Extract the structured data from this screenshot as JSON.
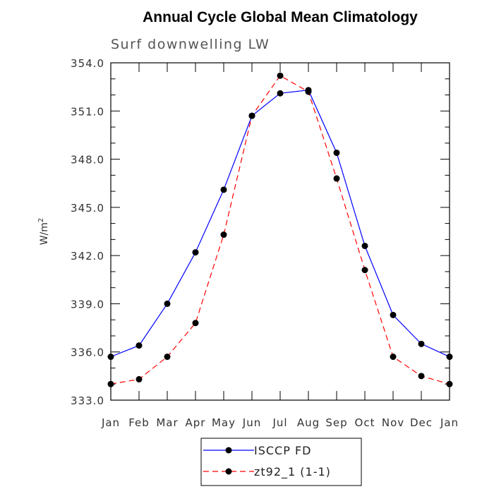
{
  "chart_data": {
    "type": "line",
    "title": "Annual Cycle Global Mean Climatology",
    "subtitle": "Surf downwelling LW",
    "ylabel": "W/m",
    "ylabel_sup": "2",
    "categories": [
      "Jan",
      "Feb",
      "Mar",
      "Apr",
      "May",
      "Jun",
      "Jul",
      "Aug",
      "Sep",
      "Oct",
      "Nov",
      "Dec",
      "Jan"
    ],
    "ylim": [
      333.0,
      354.0
    ],
    "yticks": [
      "333.0",
      "336.0",
      "339.0",
      "342.0",
      "345.0",
      "348.0",
      "351.0",
      "354.0"
    ],
    "series": [
      {
        "name": "ISCCP FD",
        "color": "#0000ff",
        "dash": "solid",
        "values": [
          335.7,
          336.4,
          339.0,
          342.2,
          346.1,
          350.7,
          352.1,
          352.3,
          348.4,
          342.6,
          338.3,
          336.5,
          335.7
        ]
      },
      {
        "name": "zt92_1 (1-1)",
        "color": "#ff0000",
        "dash": "dashed",
        "values": [
          334.0,
          334.3,
          335.7,
          337.8,
          343.3,
          350.7,
          353.2,
          352.2,
          346.8,
          341.1,
          335.7,
          334.5,
          334.0
        ]
      }
    ],
    "legend_position": "bottom-center",
    "grid": false
  }
}
